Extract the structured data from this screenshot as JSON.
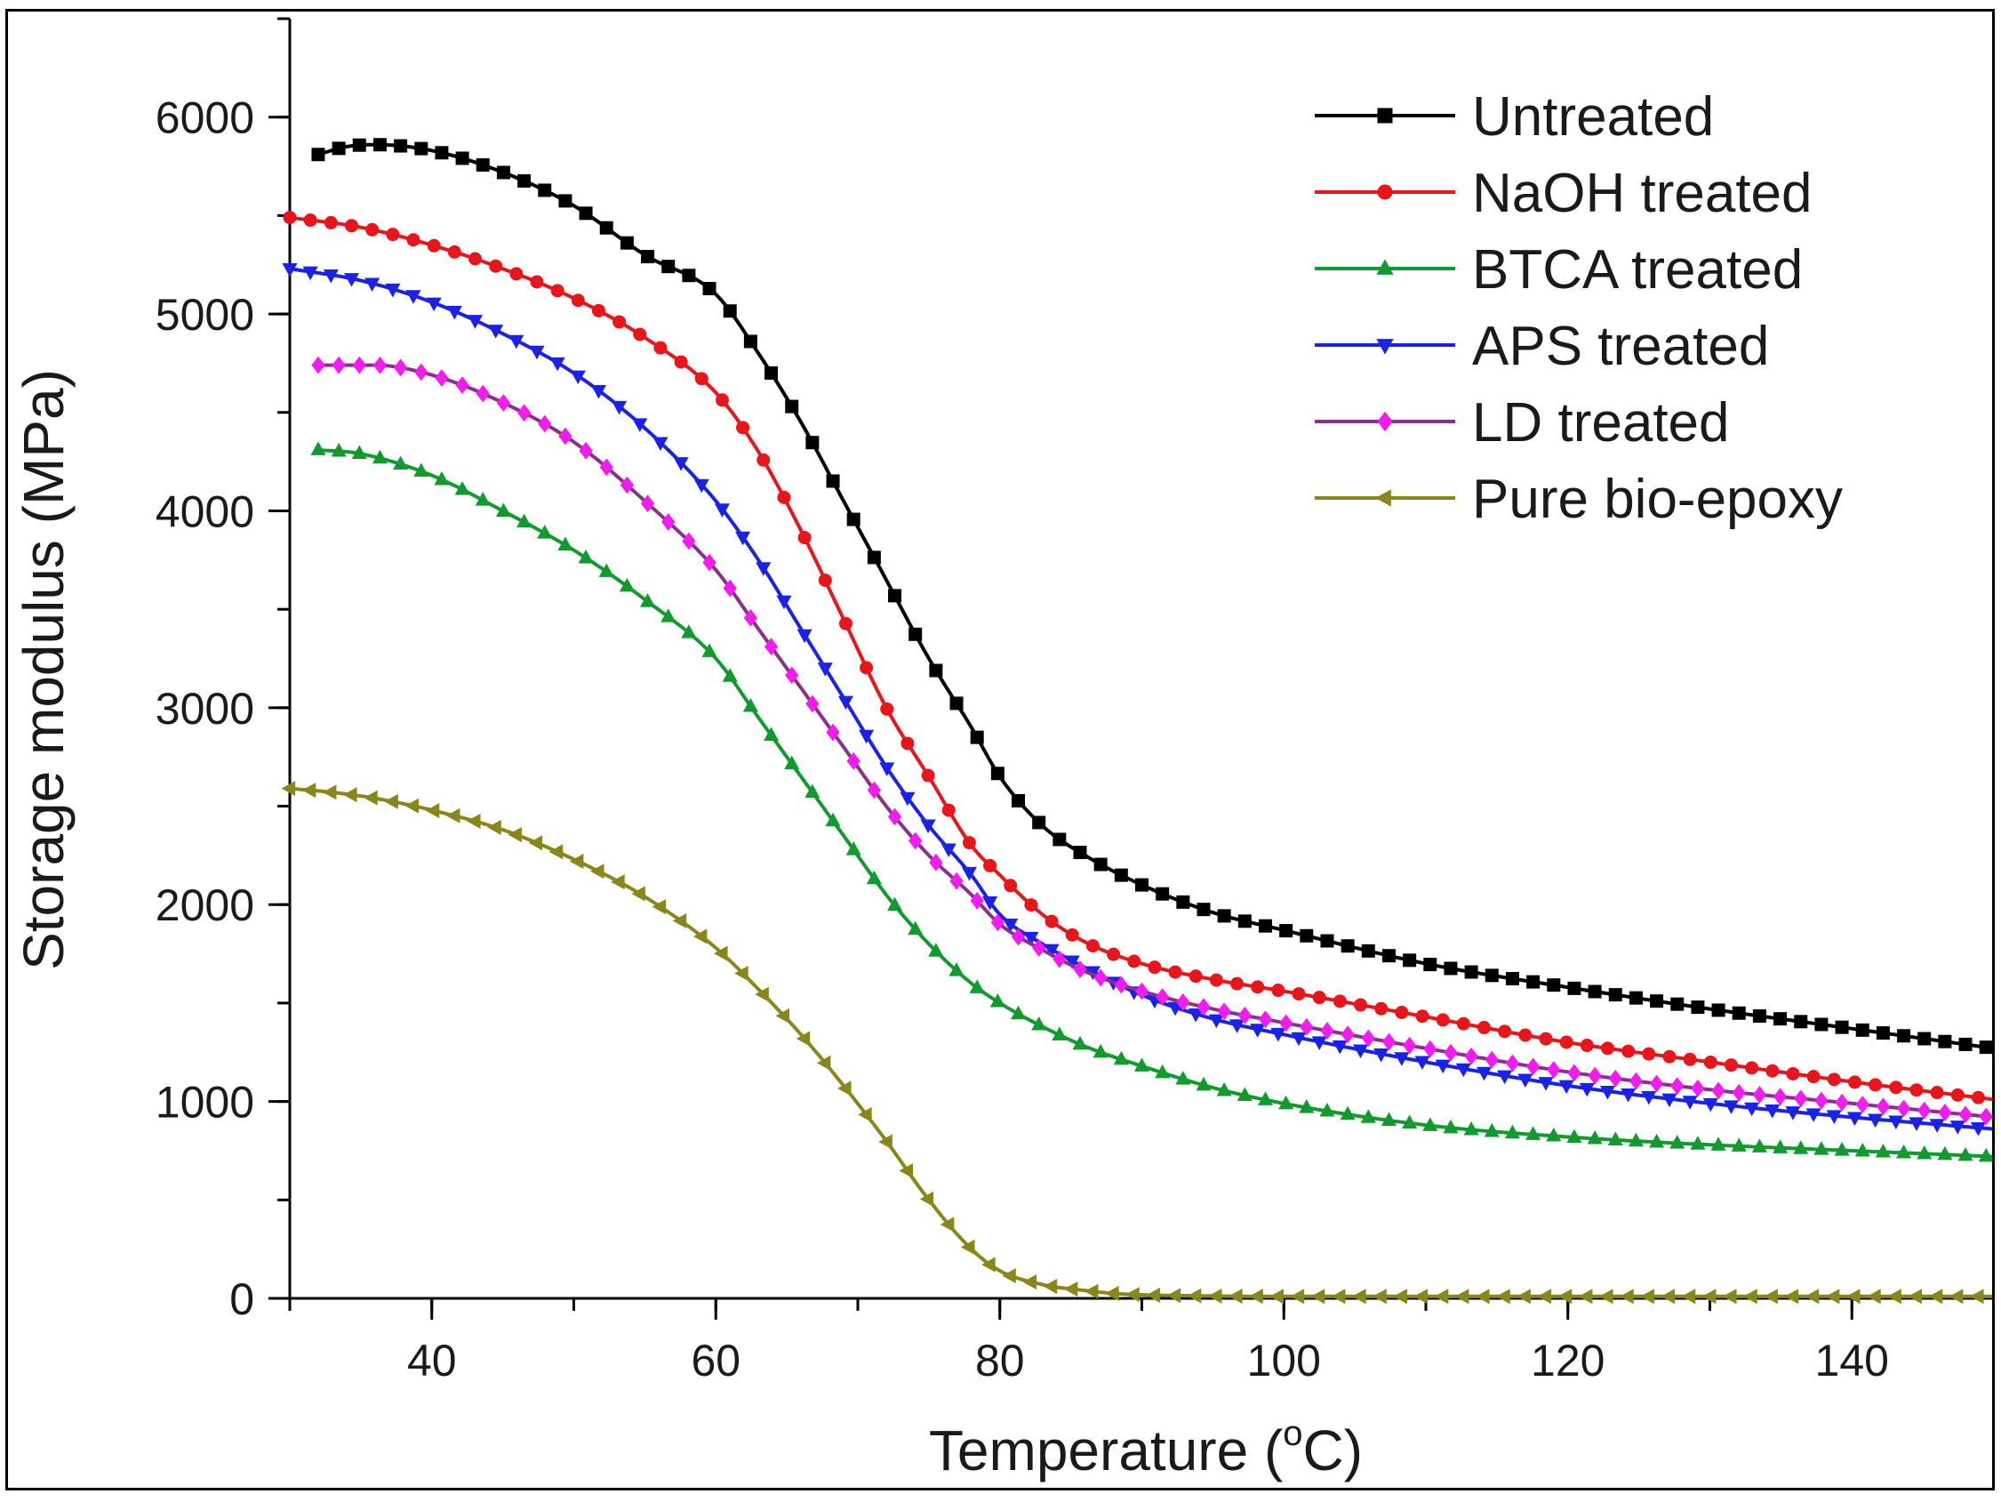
{
  "chart_data": {
    "type": "line",
    "title": "",
    "xlabel": "Temperature (",
    "xlabel_sup": "o",
    "xlabel_unit": "C)",
    "ylabel": "Storage modulus (MPa)",
    "xlim": [
      30,
      150
    ],
    "ylim": [
      0,
      6500
    ],
    "xticks": [
      40,
      60,
      80,
      100,
      120,
      140
    ],
    "yticks": [
      0,
      1000,
      2000,
      3000,
      4000,
      5000,
      6000
    ],
    "legend_position": "top-right",
    "series": [
      {
        "name": "Untreated",
        "color": "#000000",
        "marker": "square",
        "x": [
          32,
          34,
          36,
          40,
          45,
          50,
          55,
          60,
          63,
          66,
          69,
          72,
          75,
          78,
          80,
          83,
          86,
          90,
          95,
          100,
          110,
          120,
          130,
          140,
          150
        ],
        "y": [
          5810,
          5850,
          5860,
          5830,
          5720,
          5550,
          5300,
          5100,
          4800,
          4450,
          4050,
          3650,
          3250,
          2900,
          2650,
          2400,
          2250,
          2100,
          1960,
          1870,
          1700,
          1580,
          1470,
          1370,
          1270
        ]
      },
      {
        "name": "NaOH treated",
        "color": "#e8151b",
        "marker": "circle",
        "x": [
          30,
          35,
          40,
          45,
          50,
          55,
          60,
          63,
          66,
          69,
          72,
          75,
          78,
          80,
          83,
          86,
          90,
          95,
          100,
          110,
          120,
          130,
          140,
          150
        ],
        "y": [
          5490,
          5440,
          5350,
          5230,
          5080,
          4880,
          4600,
          4300,
          3900,
          3450,
          3000,
          2650,
          2300,
          2150,
          1950,
          1810,
          1700,
          1620,
          1560,
          1430,
          1300,
          1200,
          1100,
          1010
        ]
      },
      {
        "name": "BTCA treated",
        "color": "#119b2e",
        "marker": "triangle-up",
        "x": [
          32,
          35,
          40,
          45,
          50,
          55,
          60,
          63,
          66,
          69,
          72,
          75,
          78,
          80,
          83,
          86,
          90,
          95,
          100,
          110,
          120,
          130,
          140,
          150
        ],
        "y": [
          4310,
          4290,
          4180,
          4000,
          3800,
          3550,
          3250,
          2950,
          2650,
          2350,
          2050,
          1800,
          1600,
          1500,
          1380,
          1280,
          1180,
          1070,
          990,
          880,
          820,
          780,
          750,
          720
        ]
      },
      {
        "name": "APS treated",
        "color": "#1a22e8",
        "marker": "triangle-down",
        "x": [
          30,
          35,
          40,
          45,
          50,
          55,
          60,
          63,
          66,
          69,
          72,
          75,
          78,
          80,
          83,
          86,
          90,
          95,
          100,
          110,
          120,
          130,
          140,
          150
        ],
        "y": [
          5230,
          5170,
          5060,
          4900,
          4700,
          4420,
          4050,
          3750,
          3400,
          3050,
          2700,
          2400,
          2150,
          1950,
          1800,
          1680,
          1540,
          1420,
          1340,
          1200,
          1080,
          990,
          920,
          860
        ]
      },
      {
        "name": "LD treated",
        "color": "#f21bf0",
        "line_color": "#8d2f8a",
        "marker": "diamond",
        "x": [
          32,
          34,
          36,
          40,
          45,
          50,
          55,
          60,
          63,
          66,
          69,
          72,
          75,
          78,
          80,
          83,
          86,
          90,
          95,
          100,
          110,
          120,
          130,
          140,
          150
        ],
        "y": [
          4740,
          4740,
          4740,
          4690,
          4550,
          4350,
          4050,
          3700,
          3400,
          3100,
          2800,
          2500,
          2250,
          2050,
          1900,
          1770,
          1660,
          1560,
          1470,
          1400,
          1270,
          1150,
          1060,
          990,
          920
        ]
      },
      {
        "name": "Pure bio-epoxy",
        "color": "#8a861a",
        "marker": "triangle-left",
        "x": [
          30,
          33,
          36,
          40,
          45,
          50,
          55,
          60,
          63,
          66,
          69,
          72,
          75,
          78,
          80,
          83,
          86,
          88,
          90,
          95,
          100,
          110,
          120,
          130,
          140,
          150
        ],
        "y": [
          2590,
          2570,
          2540,
          2480,
          2380,
          2230,
          2040,
          1780,
          1570,
          1340,
          1080,
          800,
          500,
          250,
          140,
          70,
          40,
          25,
          18,
          12,
          10,
          10,
          10,
          10,
          10,
          10
        ]
      }
    ]
  }
}
